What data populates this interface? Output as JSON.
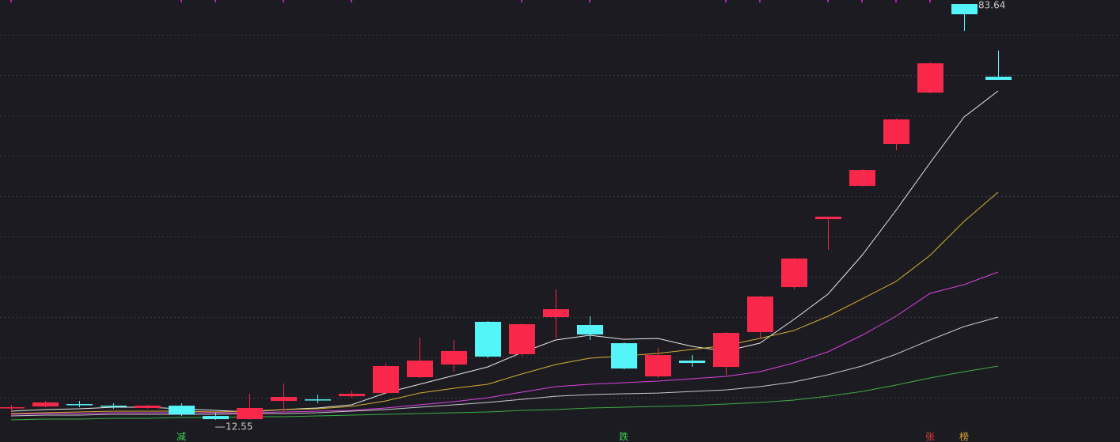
{
  "chart_data": {
    "type": "candlestick",
    "ylim": [
      8.78,
      84.32
    ],
    "grid_values": [
      78.37,
      71.48,
      64.59,
      57.7,
      50.81,
      43.92,
      37.03,
      30.14,
      23.25,
      16.36
    ],
    "up_color": "#f9284a",
    "down_color": "#54f5f8",
    "open": [
      14.72,
      14.86,
      15.26,
      14.99,
      14.59,
      14.99,
      13.23,
      12.69,
      15.8,
      16.07,
      16.61,
      17.15,
      19.86,
      22.02,
      29.32,
      23.78,
      30.13,
      28.78,
      25.67,
      19.99,
      22.69,
      21.61,
      27.56,
      35.26,
      46.88,
      52.56,
      59.72,
      68.5,
      83.64,
      71.21
    ],
    "high": [
      15.13,
      15.8,
      15.8,
      15.4,
      15.13,
      15.4,
      13.78,
      17.02,
      18.78,
      16.88,
      17.56,
      22.15,
      26.61,
      26.21,
      29.45,
      29.05,
      34.86,
      30.26,
      25.8,
      24.86,
      23.64,
      27.56,
      33.78,
      40.26,
      47.29,
      55.4,
      64.05,
      73.64,
      83.64,
      75.67
    ],
    "low": [
      14.05,
      14.72,
      14.72,
      14.45,
      14.45,
      13.23,
      12.55,
      12.62,
      13.91,
      15.4,
      16.34,
      17.02,
      19.72,
      20.8,
      23.1,
      23.5,
      26.48,
      26.21,
      21.21,
      19.72,
      21.61,
      20.26,
      26.48,
      34.86,
      41.61,
      52.42,
      58.64,
      68.37,
      79.05,
      70.67
    ],
    "close": [
      14.72,
      15.53,
      15.2,
      14.95,
      14.99,
      13.5,
      12.69,
      14.59,
      16.48,
      16.0,
      17.02,
      21.75,
      22.69,
      24.32,
      23.37,
      28.91,
      31.48,
      27.15,
      21.34,
      23.64,
      22.29,
      27.42,
      33.64,
      40.13,
      47.29,
      55.26,
      63.91,
      73.5,
      81.88,
      70.67
    ],
    "series": [
      {
        "color": "#e8e8e8",
        "values": [
          14.05,
          14.32,
          14.45,
          14.72,
          14.72,
          14.45,
          14.18,
          13.91,
          14.32,
          14.59,
          15.13,
          17.15,
          18.64,
          20.13,
          21.61,
          24.05,
          26.21,
          27.02,
          26.34,
          26.48,
          25.13,
          24.32,
          25.67,
          29.72,
          34.05,
          40.67,
          48.37,
          56.48,
          64.32,
          68.78
        ]
      },
      {
        "color": "#d8b030",
        "values": [
          13.64,
          13.78,
          13.91,
          14.05,
          14.05,
          14.05,
          13.91,
          14.05,
          14.32,
          14.45,
          14.86,
          15.8,
          17.15,
          17.96,
          18.64,
          20.4,
          22.02,
          23.1,
          23.5,
          23.91,
          24.59,
          25.26,
          26.48,
          27.83,
          30.26,
          33.23,
          36.21,
          40.67,
          46.48,
          51.48
        ]
      },
      {
        "color": "#e040e8",
        "values": [
          13.51,
          13.64,
          13.64,
          13.78,
          13.78,
          13.78,
          13.78,
          13.78,
          13.91,
          14.05,
          14.18,
          14.59,
          15.13,
          15.67,
          16.34,
          17.29,
          18.24,
          18.64,
          18.91,
          19.18,
          19.59,
          20.0,
          20.8,
          22.29,
          24.18,
          27.02,
          30.26,
          34.18,
          35.67,
          37.83
        ]
      },
      {
        "color": "#c8c8cc",
        "values": [
          13.24,
          13.37,
          13.37,
          13.51,
          13.51,
          13.51,
          13.51,
          13.64,
          13.64,
          13.78,
          14.05,
          14.32,
          14.72,
          15.13,
          15.54,
          16.07,
          16.61,
          16.88,
          17.02,
          17.15,
          17.42,
          17.69,
          18.24,
          19.05,
          20.27,
          21.75,
          23.78,
          26.21,
          28.51,
          30.13
        ]
      },
      {
        "color": "#3cb043",
        "values": [
          12.56,
          12.7,
          12.7,
          12.83,
          12.83,
          12.97,
          12.97,
          13.1,
          13.1,
          13.24,
          13.37,
          13.51,
          13.64,
          13.78,
          13.91,
          14.18,
          14.32,
          14.59,
          14.72,
          14.86,
          14.99,
          15.27,
          15.54,
          15.94,
          16.61,
          17.42,
          18.51,
          19.72,
          20.8,
          21.75
        ]
      }
    ],
    "markers": [
      {
        "index": 5,
        "text": "减",
        "color": "#39d353"
      },
      {
        "index": 18,
        "text": "跌",
        "color": "#39d353"
      },
      {
        "index": 27,
        "text": "张",
        "color": "#e8383d"
      },
      {
        "index": 28,
        "text": "榜",
        "color": "#e0a030"
      }
    ]
  }
}
